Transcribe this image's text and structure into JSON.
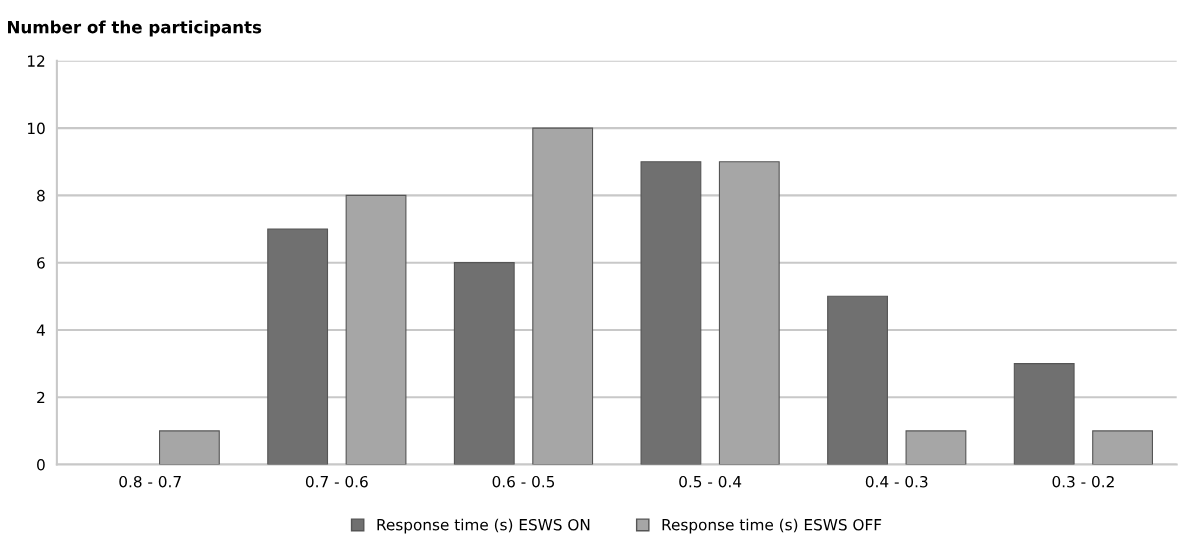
{
  "chart_data": {
    "type": "bar",
    "ylabel": "Number of the participants",
    "categories": [
      "0.8 - 0.7",
      "0.7 - 0.6",
      "0.6 - 0.5",
      "0.5 - 0.4",
      "0.4 - 0.3",
      "0.3 - 0.2"
    ],
    "series": [
      {
        "name": "Response time (s) ESWS ON",
        "color": "#707070",
        "values": [
          0,
          7,
          6,
          9,
          5,
          3
        ]
      },
      {
        "name": "Response time (s) ESWS OFF",
        "color": "#a6a6a6",
        "values": [
          1,
          8,
          10,
          9,
          1,
          1
        ]
      }
    ],
    "ylim": [
      0,
      12
    ],
    "yticks": [
      0,
      2,
      4,
      6,
      8,
      10,
      12
    ],
    "grid": "y",
    "legend": "bottom"
  }
}
